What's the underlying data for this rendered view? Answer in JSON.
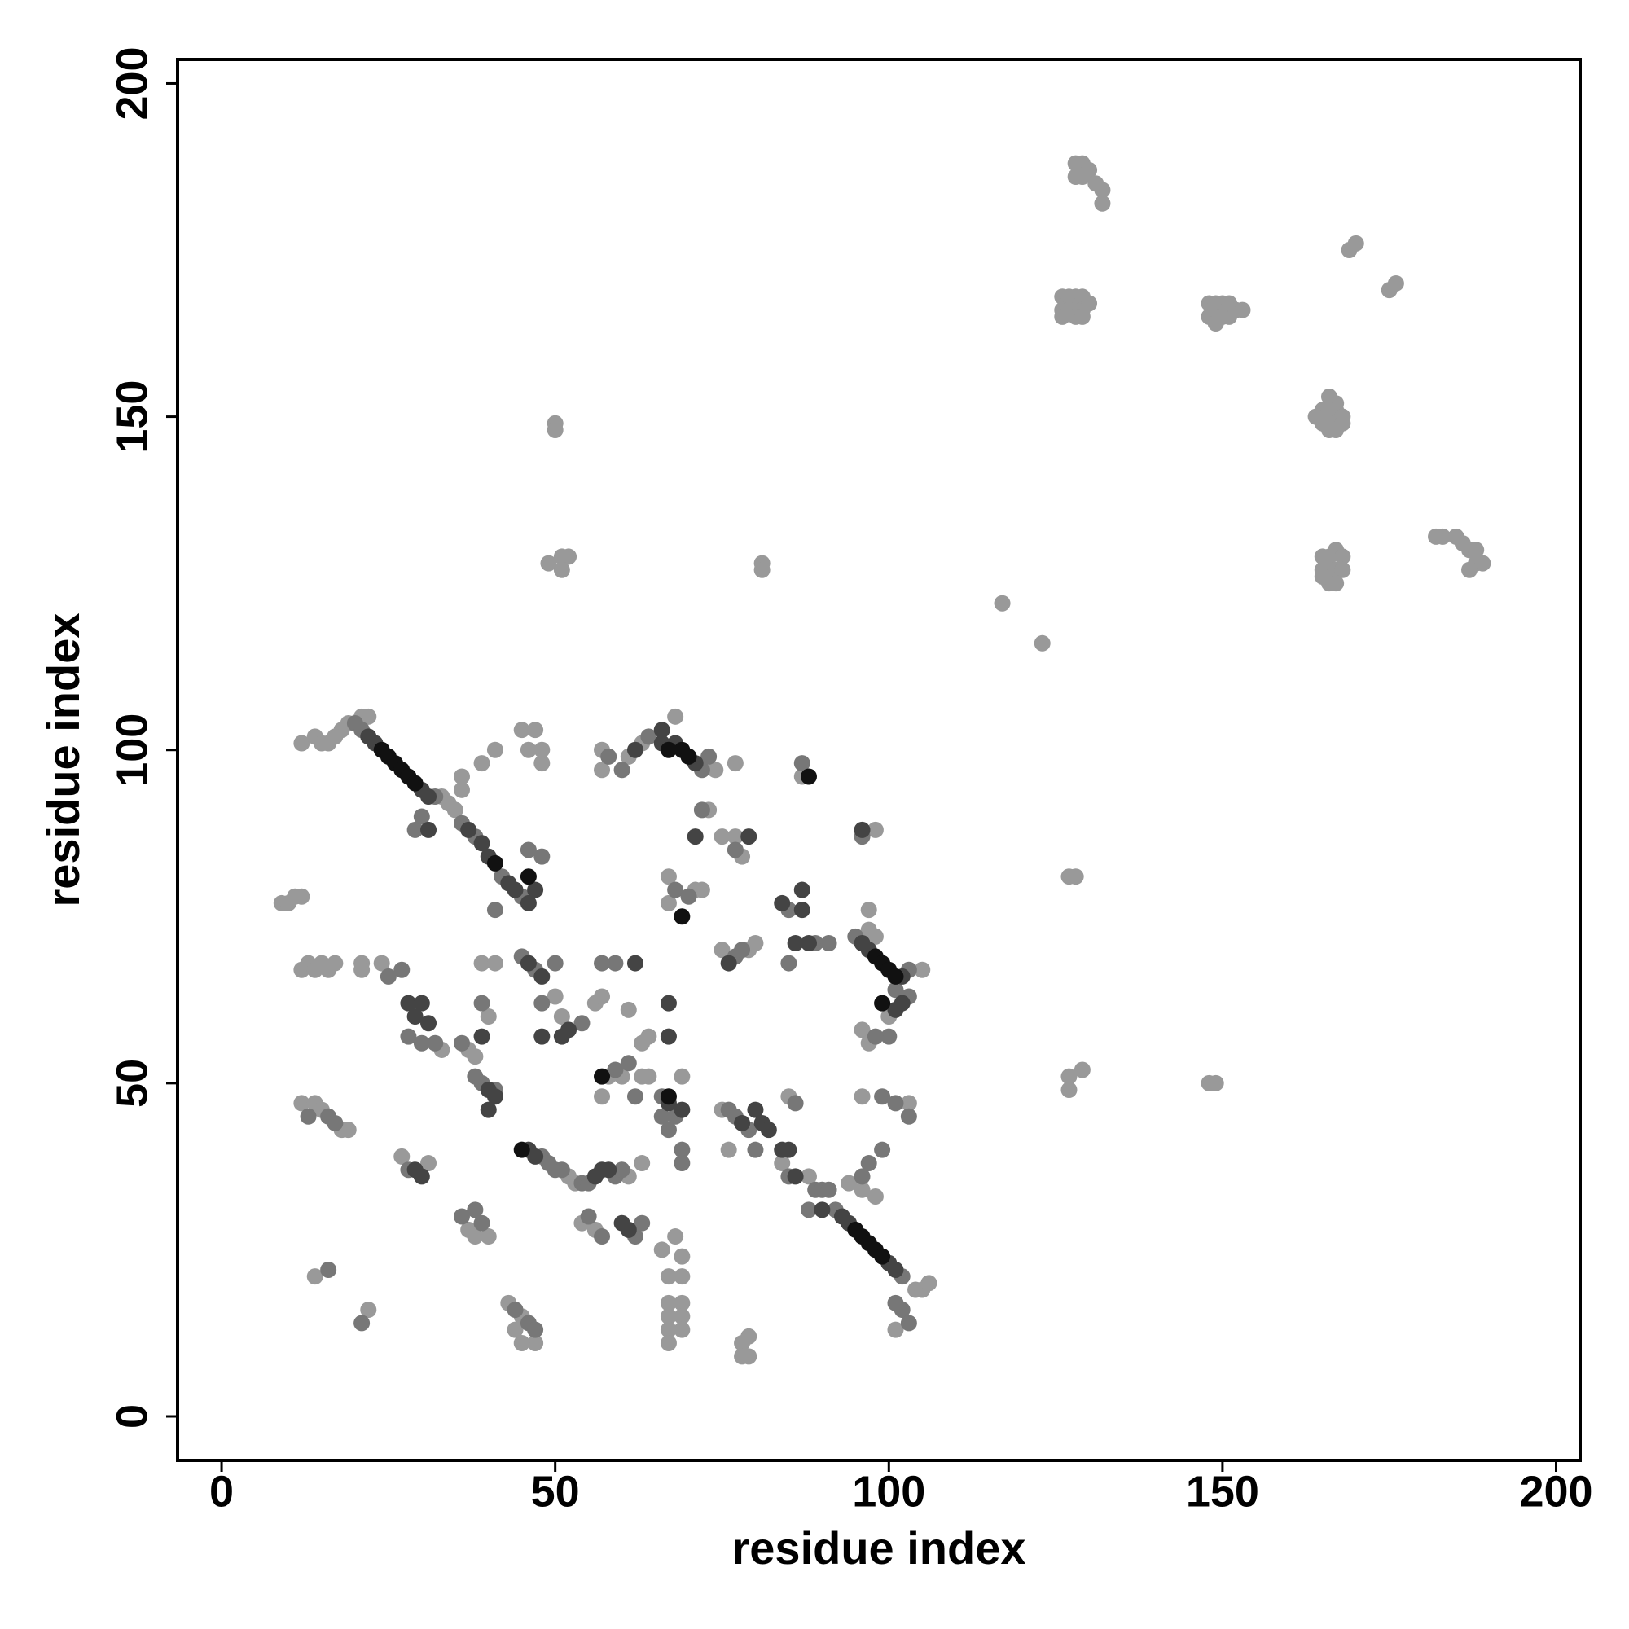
{
  "chart_data": {
    "type": "scatter",
    "x_label": "residue index",
    "y_label": "residue index",
    "xlim": [
      -6.6,
      203.6
    ],
    "ylim": [
      -6.6,
      203.6
    ],
    "xticks": [
      0,
      50,
      100,
      150,
      200
    ],
    "yticks": [
      0,
      50,
      100,
      150,
      200
    ],
    "series": [
      {
        "color": "#999999",
        "x": [
          128,
          129,
          130,
          128,
          129,
          131,
          132,
          132,
          169,
          170,
          175,
          176,
          126,
          127,
          128,
          129,
          126,
          127,
          128,
          129,
          130,
          126,
          128,
          129,
          148,
          149,
          150,
          151,
          148,
          149,
          150,
          151,
          152,
          153,
          149,
          166,
          167,
          165,
          166,
          167,
          168,
          165,
          166,
          167,
          168,
          166,
          167,
          164,
          165,
          166,
          167,
          168,
          165,
          166,
          167,
          168,
          166,
          167,
          165,
          182,
          183,
          185,
          186,
          187,
          188,
          188,
          189,
          187,
          117,
          123,
          50,
          50,
          51,
          52,
          49,
          51,
          81,
          81,
          127,
          128,
          127,
          129,
          127,
          148,
          149,
          18,
          19,
          12,
          14,
          15,
          16,
          17,
          21,
          22,
          33,
          68,
          74,
          77,
          98,
          97,
          100,
          97,
          105,
          104,
          105,
          106,
          101,
          98,
          96,
          94,
          9,
          10,
          11,
          12,
          12,
          13,
          14,
          15,
          16,
          17,
          21,
          21,
          24,
          33,
          37,
          38,
          40,
          12,
          14,
          15,
          18,
          19,
          27,
          31,
          37,
          40,
          38,
          14,
          22,
          43,
          45,
          47,
          45,
          44,
          34,
          35,
          39,
          41,
          36,
          36,
          45,
          47,
          48,
          46,
          48,
          39,
          41,
          50,
          51,
          56,
          57,
          61,
          52,
          53,
          61,
          63,
          54,
          56,
          58,
          60,
          63,
          64,
          57,
          63,
          64,
          69,
          66,
          68,
          69,
          67,
          69,
          67,
          69,
          67,
          69,
          67,
          69,
          67,
          78,
          79,
          78,
          79,
          75,
          76,
          84,
          88,
          103,
          96,
          57,
          57,
          61,
          63,
          79,
          80,
          75,
          73,
          75,
          77,
          78,
          67,
          67,
          71,
          72,
          85,
          96,
          97,
          98,
          87
        ],
        "y": [
          188,
          188,
          187,
          186,
          186,
          185,
          184,
          182,
          175,
          176,
          169,
          170,
          168,
          168,
          168,
          168,
          166,
          166,
          166,
          166,
          167,
          165,
          165,
          165,
          167,
          167,
          167,
          167,
          165,
          165,
          165,
          165,
          166,
          166,
          164,
          153,
          152,
          151,
          151,
          151,
          150,
          149,
          149,
          149,
          149,
          148,
          148,
          150,
          129,
          129,
          130,
          129,
          127,
          127,
          127,
          127,
          125,
          125,
          126,
          132,
          132,
          132,
          131,
          130,
          130,
          128,
          128,
          127,
          122,
          116,
          149,
          148,
          129,
          129,
          128,
          127,
          128,
          127,
          81,
          81,
          51,
          52,
          49,
          50,
          50,
          103,
          104,
          101,
          102,
          101,
          101,
          102,
          105,
          105,
          93,
          105,
          97,
          98,
          72,
          73,
          60,
          76,
          67,
          19,
          19,
          20,
          13,
          33,
          34,
          35,
          77,
          77,
          78,
          78,
          67,
          68,
          67,
          68,
          67,
          68,
          68,
          67,
          68,
          55,
          55,
          54,
          60,
          47,
          47,
          46,
          43,
          43,
          39,
          38,
          28,
          27,
          27,
          21,
          16,
          17,
          15,
          11,
          11,
          13,
          92,
          91,
          98,
          100,
          96,
          94,
          103,
          103,
          98,
          100,
          100,
          68,
          68,
          63,
          60,
          62,
          63,
          61,
          36,
          35,
          36,
          38,
          29,
          28,
          51,
          51,
          51,
          51,
          48,
          56,
          57,
          51,
          25,
          27,
          24,
          21,
          21,
          17,
          17,
          15,
          15,
          13,
          13,
          11,
          11,
          12,
          9,
          9,
          46,
          40,
          38,
          36,
          47,
          48,
          97,
          100,
          99,
          101,
          70,
          71,
          70,
          91,
          87,
          87,
          84,
          77,
          81,
          79,
          79,
          48,
          58,
          56,
          88,
          96
        ]
      },
      {
        "color": "#777777",
        "x": [
          20,
          21,
          32,
          72,
          73,
          95,
          103,
          92,
          102,
          88,
          39,
          36,
          38,
          39,
          41,
          28,
          36,
          38,
          39,
          46,
          47,
          44,
          45,
          48,
          36,
          38,
          42,
          45,
          47,
          48,
          50,
          51,
          54,
          55,
          59,
          55,
          57,
          59,
          61,
          62,
          68,
          66,
          76,
          77,
          79,
          80,
          85,
          89,
          90,
          91,
          96,
          101,
          103,
          99,
          99,
          97,
          100,
          101,
          103,
          98,
          77,
          78,
          72,
          77,
          68,
          70,
          85,
          85,
          89,
          91,
          87,
          96,
          59,
          57,
          54,
          30,
          32,
          28,
          58,
          60,
          64,
          13,
          16,
          17,
          101,
          102,
          103,
          21,
          16,
          27,
          25,
          46,
          41,
          29,
          30,
          50,
          48,
          49,
          60,
          62,
          63,
          66,
          67,
          69,
          69,
          86
        ],
        "y": [
          104,
          103,
          93,
          97,
          99,
          72,
          67,
          31,
          21,
          31,
          62,
          56,
          51,
          50,
          49,
          37,
          30,
          31,
          29,
          14,
          13,
          16,
          78,
          84,
          89,
          87,
          81,
          69,
          67,
          62,
          37,
          37,
          35,
          35,
          36,
          30,
          27,
          52,
          53,
          48,
          45,
          45,
          46,
          45,
          43,
          40,
          36,
          34,
          34,
          34,
          36,
          47,
          45,
          48,
          40,
          38,
          57,
          64,
          63,
          57,
          69,
          70,
          91,
          85,
          79,
          78,
          76,
          68,
          71,
          71,
          98,
          87,
          68,
          68,
          59,
          56,
          56,
          57,
          99,
          97,
          102,
          45,
          45,
          44,
          17,
          16,
          14,
          14,
          22,
          67,
          66,
          85,
          76,
          88,
          90,
          68,
          39,
          38,
          37,
          27,
          29,
          48,
          43,
          40,
          38,
          47
        ]
      },
      {
        "color": "#444444",
        "x": [
          22,
          23,
          30,
          31,
          66,
          66,
          68,
          71,
          97,
          96,
          102,
          94,
          93,
          100,
          101,
          90,
          28,
          30,
          29,
          31,
          39,
          40,
          41,
          40,
          29,
          30,
          43,
          44,
          46,
          47,
          37,
          39,
          40,
          31,
          48,
          46,
          51,
          52,
          57,
          58,
          56,
          60,
          61,
          67,
          69,
          78,
          80,
          81,
          84,
          85,
          86,
          87,
          88,
          86,
          87,
          96,
          79,
          71,
          76,
          62,
          67,
          46,
          47,
          82,
          102,
          101,
          62,
          67,
          48,
          84
        ],
        "y": [
          102,
          101,
          94,
          93,
          101,
          103,
          101,
          98,
          70,
          71,
          66,
          29,
          30,
          23,
          22,
          31,
          62,
          62,
          60,
          59,
          57,
          49,
          48,
          46,
          37,
          36,
          80,
          79,
          77,
          79,
          88,
          86,
          84,
          88,
          66,
          68,
          57,
          58,
          37,
          37,
          36,
          29,
          28,
          47,
          46,
          44,
          46,
          44,
          40,
          40,
          36,
          76,
          71,
          71,
          79,
          88,
          87,
          87,
          68,
          68,
          62,
          40,
          39,
          43,
          62,
          61,
          100,
          57,
          57,
          77
        ]
      },
      {
        "color": "#111111",
        "x": [
          24,
          25,
          26,
          27,
          28,
          29,
          67,
          69,
          70,
          98,
          99,
          100,
          101,
          95,
          96,
          97,
          98,
          99,
          57,
          69,
          88,
          41,
          45,
          67,
          99,
          46
        ],
        "y": [
          100,
          99,
          98,
          97,
          96,
          95,
          100,
          100,
          99,
          69,
          68,
          67,
          66,
          28,
          27,
          26,
          25,
          24,
          51,
          75,
          96,
          83,
          40,
          48,
          62,
          81
        ]
      }
    ]
  }
}
